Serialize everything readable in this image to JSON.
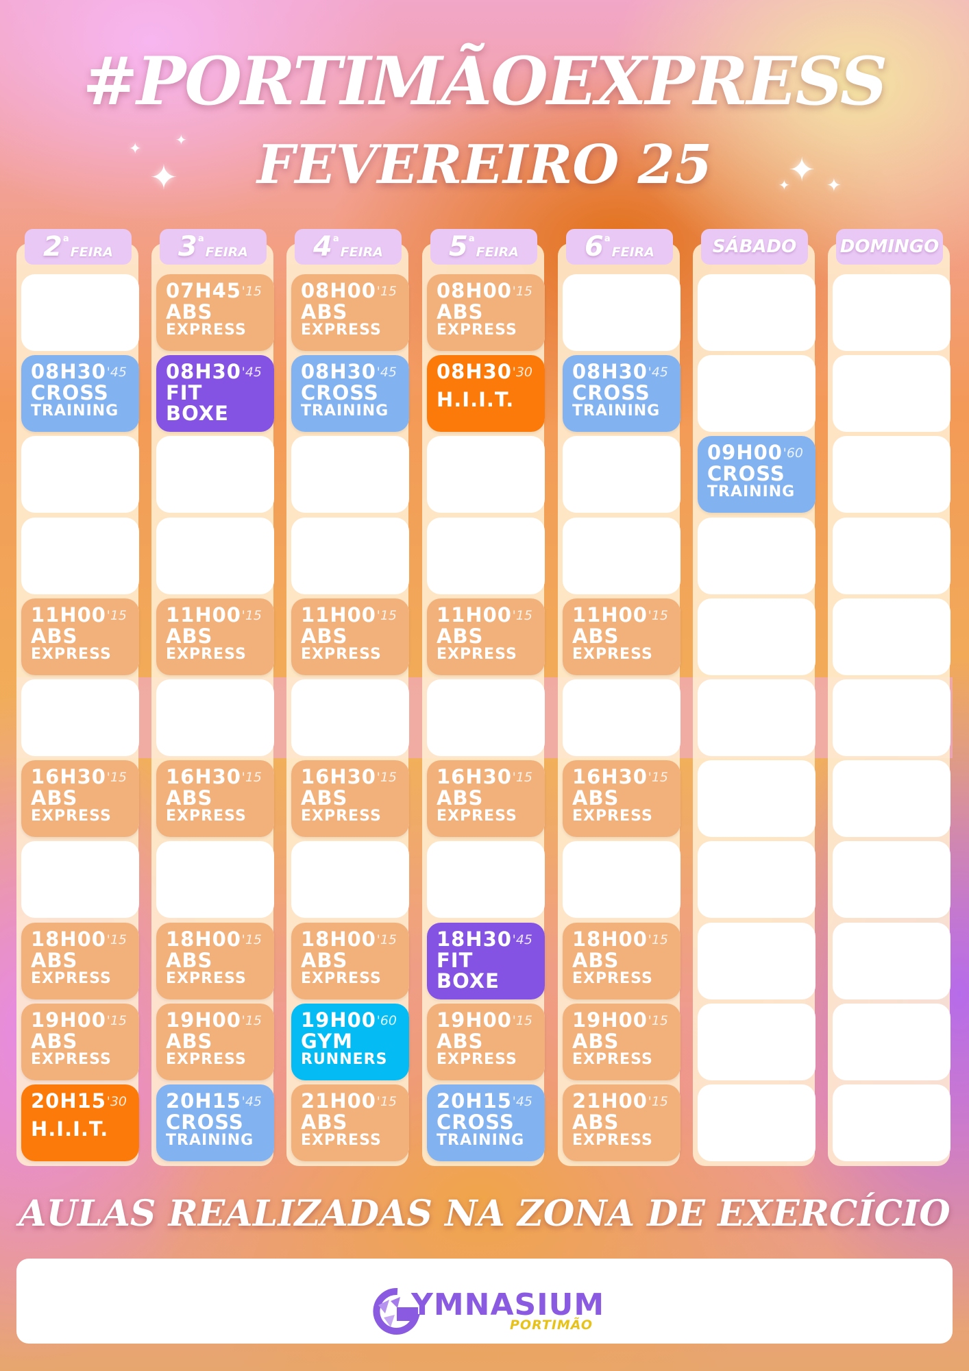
{
  "header": {
    "title": "#PORTIMÃOEXPRESS",
    "subtitle": "FEVEREIRO 25"
  },
  "days": [
    {
      "num": "2",
      "sup": "a",
      "label": "FEIRA"
    },
    {
      "num": "3",
      "sup": "a",
      "label": "FEIRA"
    },
    {
      "num": "4",
      "sup": "a",
      "label": "FEIRA"
    },
    {
      "num": "5",
      "sup": "a",
      "label": "FEIRA"
    },
    {
      "num": "6",
      "sup": "a",
      "label": "FEIRA"
    },
    {
      "word": "SÁBADO"
    },
    {
      "word": "DOMINGO"
    }
  ],
  "classes": [
    {
      "day": 0,
      "slot": 1,
      "time": "08H30",
      "dur": "'45",
      "name": "CROSS",
      "sub": "TRAINING",
      "color": "#82b2ef"
    },
    {
      "day": 0,
      "slot": 4,
      "time": "11H00",
      "dur": "'15",
      "name": "ABS",
      "sub": "EXPRESS",
      "color": "#f2b17a"
    },
    {
      "day": 0,
      "slot": 6,
      "time": "16H30",
      "dur": "'15",
      "name": "ABS",
      "sub": "EXPRESS",
      "color": "#f2b17a"
    },
    {
      "day": 0,
      "slot": 8,
      "time": "18H00",
      "dur": "'15",
      "name": "ABS",
      "sub": "EXPRESS",
      "color": "#f2b17a"
    },
    {
      "day": 0,
      "slot": 9,
      "time": "19H00",
      "dur": "'15",
      "name": "ABS",
      "sub": "EXPRESS",
      "color": "#f2b17a"
    },
    {
      "day": 0,
      "slot": 10,
      "time": "20H15",
      "dur": "'30",
      "name": "H.I.I.T.",
      "sub": "",
      "color": "#fc7a09"
    },
    {
      "day": 1,
      "slot": 0,
      "time": "07H45",
      "dur": "'15",
      "name": "ABS",
      "sub": "EXPRESS",
      "color": "#f2b17a"
    },
    {
      "day": 1,
      "slot": 1,
      "time": "08H30",
      "dur": "'45",
      "name": "FIT",
      "sub": "BOXE",
      "color": "#8553e3"
    },
    {
      "day": 1,
      "slot": 4,
      "time": "11H00",
      "dur": "'15",
      "name": "ABS",
      "sub": "EXPRESS",
      "color": "#f2b17a"
    },
    {
      "day": 1,
      "slot": 6,
      "time": "16H30",
      "dur": "'15",
      "name": "ABS",
      "sub": "EXPRESS",
      "color": "#f2b17a"
    },
    {
      "day": 1,
      "slot": 8,
      "time": "18H00",
      "dur": "'15",
      "name": "ABS",
      "sub": "EXPRESS",
      "color": "#f2b17a"
    },
    {
      "day": 1,
      "slot": 9,
      "time": "19H00",
      "dur": "'15",
      "name": "ABS",
      "sub": "EXPRESS",
      "color": "#f2b17a"
    },
    {
      "day": 1,
      "slot": 10,
      "time": "20H15",
      "dur": "'45",
      "name": "CROSS",
      "sub": "TRAINING",
      "color": "#82b2ef"
    },
    {
      "day": 2,
      "slot": 0,
      "time": "08H00",
      "dur": "'15",
      "name": "ABS",
      "sub": "EXPRESS",
      "color": "#f2b17a"
    },
    {
      "day": 2,
      "slot": 1,
      "time": "08H30",
      "dur": "'45",
      "name": "CROSS",
      "sub": "TRAINING",
      "color": "#82b2ef"
    },
    {
      "day": 2,
      "slot": 4,
      "time": "11H00",
      "dur": "'15",
      "name": "ABS",
      "sub": "EXPRESS",
      "color": "#f2b17a"
    },
    {
      "day": 2,
      "slot": 6,
      "time": "16H30",
      "dur": "'15",
      "name": "ABS",
      "sub": "EXPRESS",
      "color": "#f2b17a"
    },
    {
      "day": 2,
      "slot": 8,
      "time": "18H00",
      "dur": "'15",
      "name": "ABS",
      "sub": "EXPRESS",
      "color": "#f2b17a"
    },
    {
      "day": 2,
      "slot": 9,
      "time": "19H00",
      "dur": "'60",
      "name": "GYM",
      "sub": "RUNNERS",
      "color": "#04bcf3"
    },
    {
      "day": 2,
      "slot": 10,
      "time": "21H00",
      "dur": "'15",
      "name": "ABS",
      "sub": "EXPRESS",
      "color": "#f2b17a"
    },
    {
      "day": 3,
      "slot": 0,
      "time": "08H00",
      "dur": "'15",
      "name": "ABS",
      "sub": "EXPRESS",
      "color": "#f2b17a"
    },
    {
      "day": 3,
      "slot": 1,
      "time": "08H30",
      "dur": "'30",
      "name": "H.I.I.T.",
      "sub": "",
      "color": "#fc7a09"
    },
    {
      "day": 3,
      "slot": 4,
      "time": "11H00",
      "dur": "'15",
      "name": "ABS",
      "sub": "EXPRESS",
      "color": "#f2b17a"
    },
    {
      "day": 3,
      "slot": 6,
      "time": "16H30",
      "dur": "'15",
      "name": "ABS",
      "sub": "EXPRESS",
      "color": "#f2b17a"
    },
    {
      "day": 3,
      "slot": 8,
      "time": "18H30",
      "dur": "'45",
      "name": "FIT",
      "sub": "BOXE",
      "color": "#8553e3"
    },
    {
      "day": 3,
      "slot": 9,
      "time": "19H00",
      "dur": "'15",
      "name": "ABS",
      "sub": "EXPRESS",
      "color": "#f2b17a"
    },
    {
      "day": 3,
      "slot": 10,
      "time": "20H15",
      "dur": "'45",
      "name": "CROSS",
      "sub": "TRAINING",
      "color": "#82b2ef"
    },
    {
      "day": 4,
      "slot": 1,
      "time": "08H30",
      "dur": "'45",
      "name": "CROSS",
      "sub": "TRAINING",
      "color": "#82b2ef"
    },
    {
      "day": 4,
      "slot": 4,
      "time": "11H00",
      "dur": "'15",
      "name": "ABS",
      "sub": "EXPRESS",
      "color": "#f2b17a"
    },
    {
      "day": 4,
      "slot": 6,
      "time": "16H30",
      "dur": "'15",
      "name": "ABS",
      "sub": "EXPRESS",
      "color": "#f2b17a"
    },
    {
      "day": 4,
      "slot": 8,
      "time": "18H00",
      "dur": "'15",
      "name": "ABS",
      "sub": "EXPRESS",
      "color": "#f2b17a"
    },
    {
      "day": 4,
      "slot": 9,
      "time": "19H00",
      "dur": "'15",
      "name": "ABS",
      "sub": "EXPRESS",
      "color": "#f2b17a"
    },
    {
      "day": 4,
      "slot": 10,
      "time": "21H00",
      "dur": "'15",
      "name": "ABS",
      "sub": "EXPRESS",
      "color": "#f2b17a"
    },
    {
      "day": 5,
      "slot": 2,
      "time": "09H00",
      "dur": "'60",
      "name": "CROSS",
      "sub": "TRAINING",
      "color": "#82b2ef"
    }
  ],
  "footer": {
    "tagline": "AULAS REALIZADAS NA ZONA DE EXERCÍCIO",
    "logo_word": "YMNASIUM",
    "logo_city": "PORTIMÃO"
  }
}
